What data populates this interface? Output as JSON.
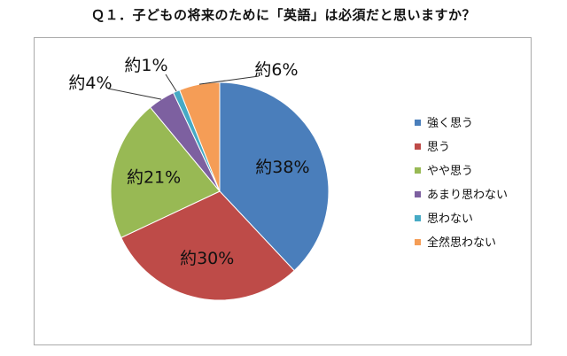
{
  "chart_data": {
    "type": "pie",
    "title": "Ｑ１．子どもの将来のために「英語」は必須だと思いますか？",
    "categories": [
      "強く思う",
      "思う",
      "やや思う",
      "あまり思わない",
      "思わない",
      "全然思わない"
    ],
    "values": [
      38,
      30,
      21,
      4,
      1,
      6
    ],
    "labels": [
      "約38%",
      "約30%",
      "約21%",
      "約4%",
      "約1%",
      "約6%"
    ],
    "colors": [
      "#4a7ebb",
      "#be4b48",
      "#98b954",
      "#7d60a0",
      "#46aac5",
      "#f59d56"
    ],
    "legend_position": "right"
  }
}
